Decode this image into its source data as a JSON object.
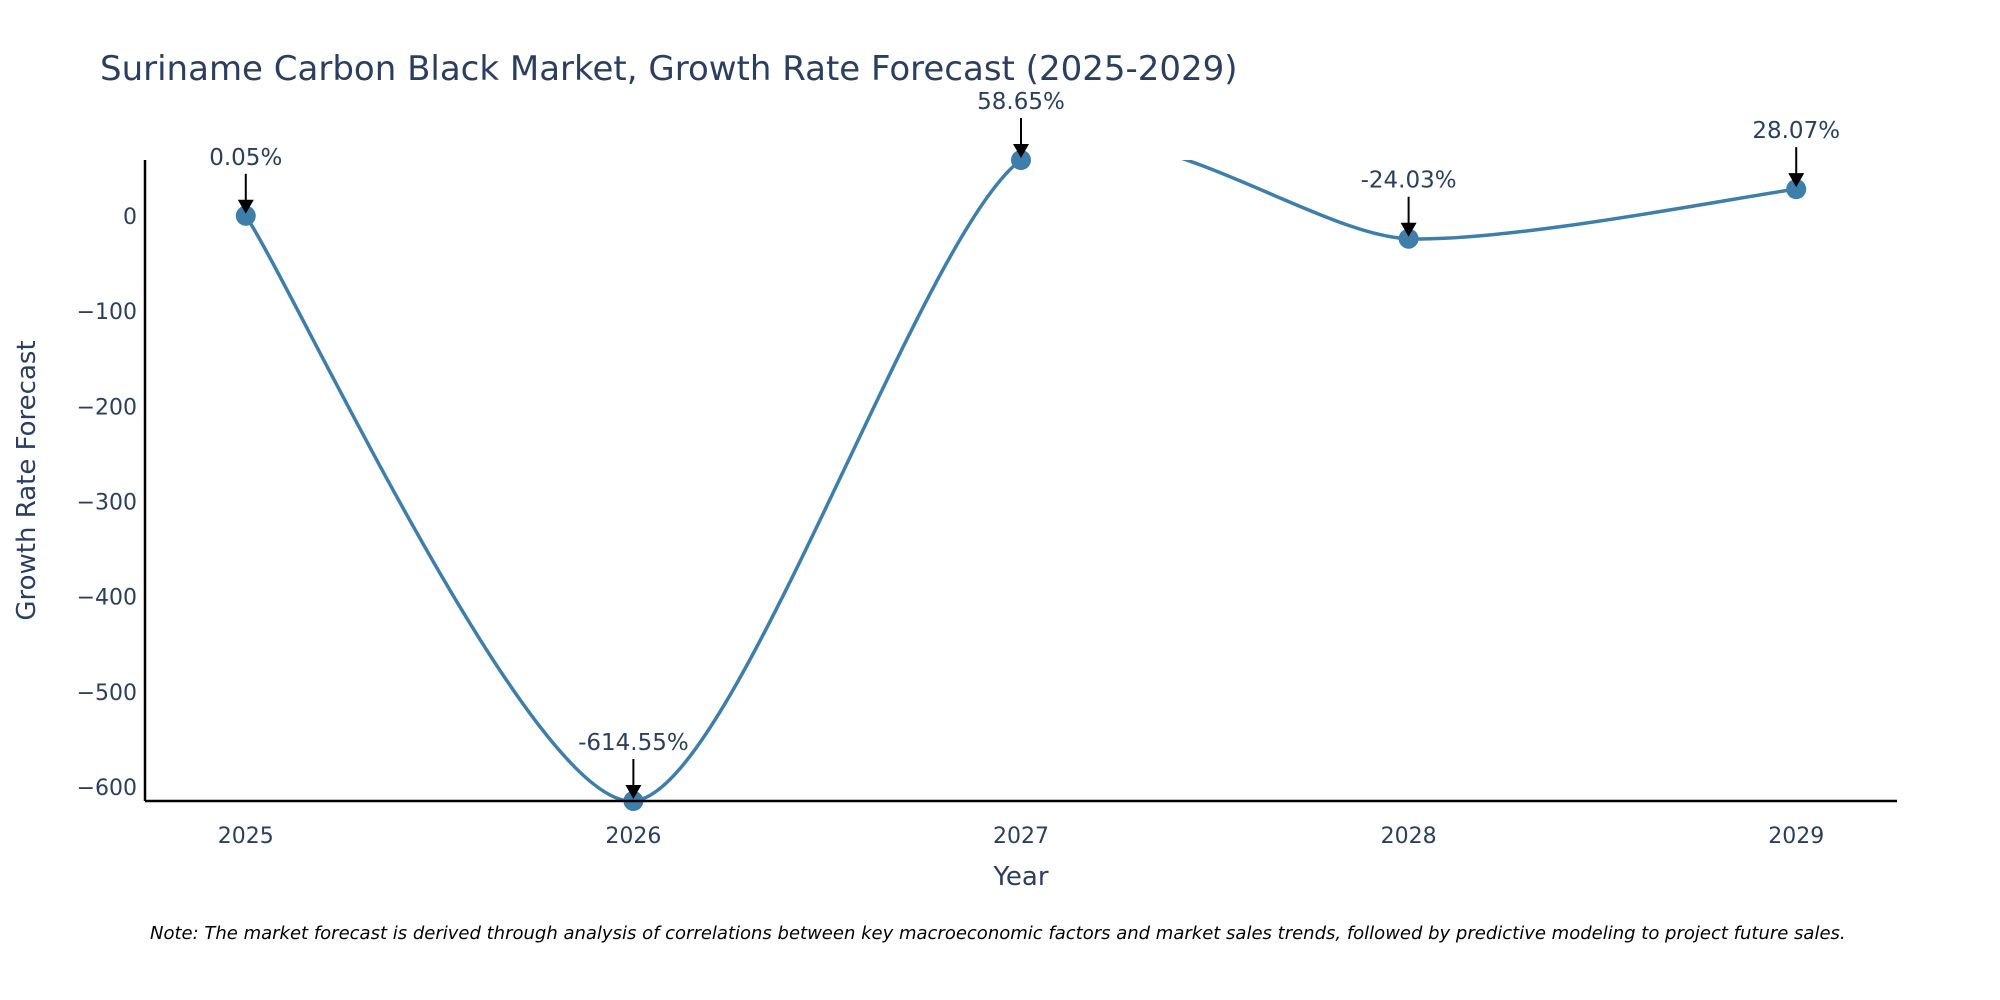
{
  "chart_data": {
    "type": "line",
    "title": "Suriname Carbon Black Market, Growth Rate Forecast (2025-2029)",
    "xlabel": "Year",
    "ylabel": "Growth Rate Forecast",
    "categories": [
      "2025",
      "2026",
      "2027",
      "2028",
      "2029"
    ],
    "series": [
      {
        "name": "Growth Rate Forecast",
        "values": [
          0.05,
          -614.55,
          58.65,
          -24.03,
          28.07
        ],
        "labels": [
          "0.05%",
          "-614.55%",
          "58.65%",
          "-24.03%",
          "28.07%"
        ]
      }
    ],
    "y_ticks": [
      0,
      -100,
      -200,
      -300,
      -400,
      -500,
      -600
    ],
    "y_tick_labels": [
      "0",
      "−100",
      "−200",
      "−300",
      "−400",
      "−500",
      "−600"
    ],
    "ylim": [
      -614.55,
      58.65
    ],
    "xlim": [
      -0.26,
      4.26
    ],
    "grid": false,
    "line_color": "#3d7eaa",
    "marker_color": "#3d7eaa",
    "arrow_color": "#000000",
    "text_color": "#2a3f5f",
    "line_shape": "spline"
  },
  "note": "Note: The market forecast is derived through analysis of correlations between key macroeconomic factors and market sales trends, followed by predictive modeling to project future sales."
}
